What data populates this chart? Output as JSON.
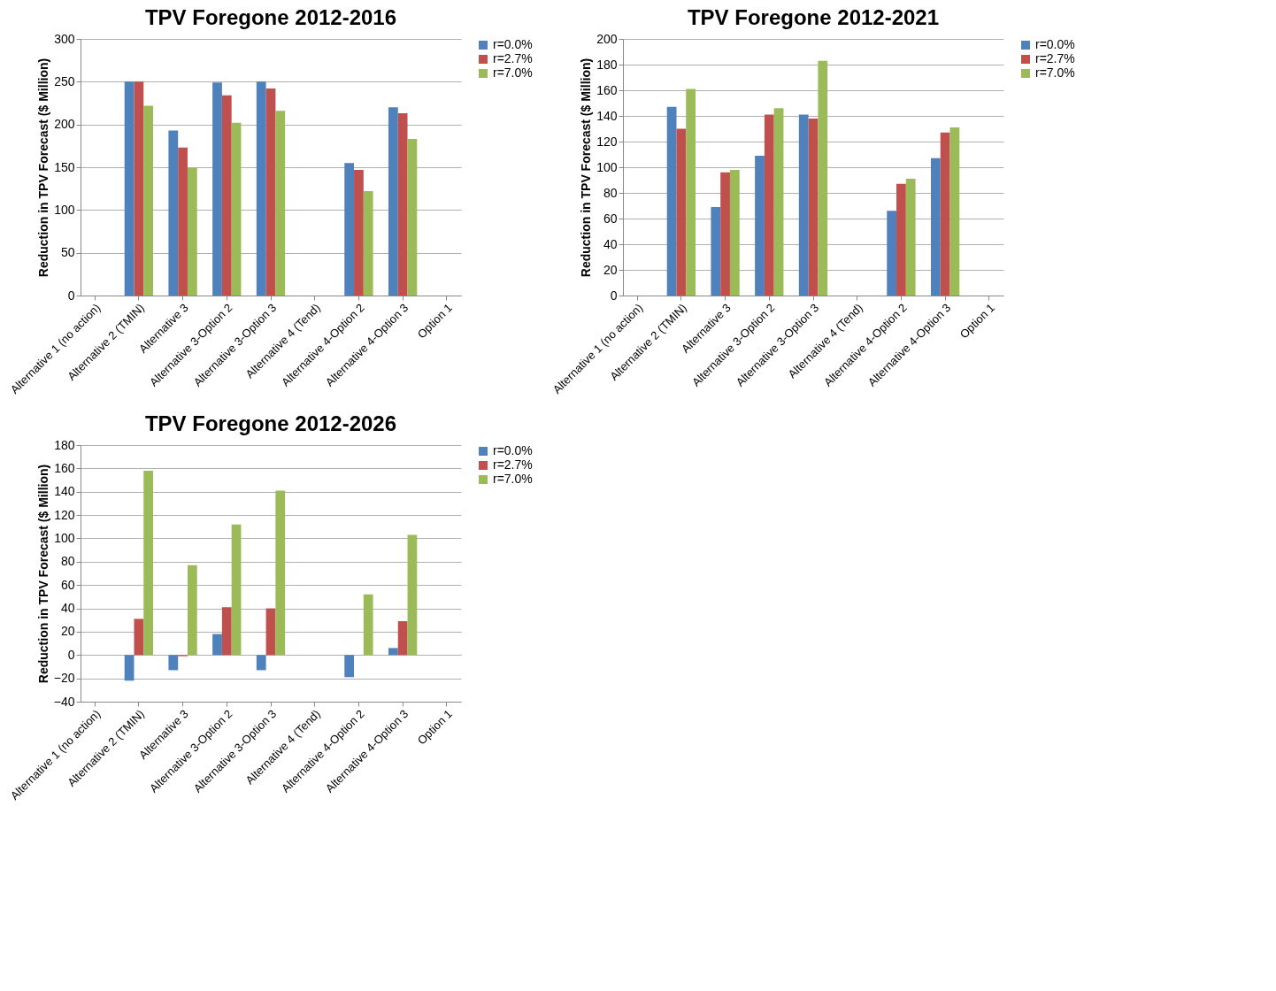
{
  "chart_data": [
    {
      "type": "bar",
      "title": "TPV Foregone 2012-2016",
      "ylabel": "Reduction in TPV Forecast ($ Million)",
      "categories": [
        "Alternative 1 (no action)",
        "Alternative 2 (TMIN)",
        "Alternative 3",
        "Alternative 3-Option 2",
        "Alternative 3-Option 3",
        "Alternative 4 (Tend)",
        "Alternative 4-Option 2",
        "Alternative 4-Option 3",
        "Option 1"
      ],
      "ylim": [
        0,
        300
      ],
      "yticks": [
        0,
        50,
        100,
        150,
        200,
        250,
        300
      ],
      "grid": "y",
      "legend": "right",
      "series": [
        {
          "name": "r=0.0%",
          "color": "#4f81bd",
          "values": [
            null,
            250,
            193,
            249,
            250,
            null,
            155,
            220,
            null
          ]
        },
        {
          "name": "r=2.7%",
          "color": "#c0504d",
          "values": [
            null,
            250,
            173,
            234,
            242,
            null,
            147,
            213,
            null
          ]
        },
        {
          "name": "r=7.0%",
          "color": "#9bbb59",
          "values": [
            null,
            222,
            149,
            202,
            216,
            null,
            122,
            183,
            null
          ]
        }
      ]
    },
    {
      "type": "bar",
      "title": "TPV Foregone 2012-2021",
      "ylabel": "Reduction in TPV Forecast ($ Million)",
      "categories": [
        "Alternative 1 (no action)",
        "Alternative 2 (TMIN)",
        "Alternative 3",
        "Alternative 3-Option 2",
        "Alternative 3-Option 3",
        "Alternative 4 (Tend)",
        "Alternative 4-Option 2",
        "Alternative 4-Option 3",
        "Option 1"
      ],
      "ylim": [
        0,
        200
      ],
      "yticks": [
        0,
        20,
        40,
        60,
        80,
        100,
        120,
        140,
        160,
        180,
        200
      ],
      "grid": "y",
      "legend": "right",
      "series": [
        {
          "name": "r=0.0%",
          "color": "#4f81bd",
          "values": [
            null,
            147,
            69,
            109,
            141,
            null,
            66,
            107,
            null
          ]
        },
        {
          "name": "r=2.7%",
          "color": "#c0504d",
          "values": [
            null,
            130,
            96,
            141,
            138,
            null,
            87,
            127,
            null
          ]
        },
        {
          "name": "r=7.0%",
          "color": "#9bbb59",
          "values": [
            null,
            161,
            98,
            146,
            183,
            null,
            91,
            131,
            null
          ]
        }
      ]
    },
    {
      "type": "bar",
      "title": "TPV Foregone 2012-2026",
      "ylabel": "Reduction in TPV Forecast ($ Million)",
      "categories": [
        "Alternative 1 (no action)",
        "Alternative 2 (TMIN)",
        "Alternative 3",
        "Alternative 3-Option 2",
        "Alternative 3-Option 3",
        "Alternative 4 (Tend)",
        "Alternative 4-Option 2",
        "Alternative 4-Option 3",
        "Option 1"
      ],
      "ylim": [
        -40,
        180
      ],
      "yticks": [
        -40,
        -20,
        0,
        20,
        40,
        60,
        80,
        100,
        120,
        140,
        160,
        180
      ],
      "grid": "y",
      "legend": "right",
      "series": [
        {
          "name": "r=0.0%",
          "color": "#4f81bd",
          "values": [
            null,
            -22,
            -13,
            18,
            -13,
            null,
            -19,
            6,
            null
          ]
        },
        {
          "name": "r=2.7%",
          "color": "#c0504d",
          "values": [
            null,
            31,
            -1,
            41,
            40,
            null,
            null,
            29,
            null
          ]
        },
        {
          "name": "r=7.0%",
          "color": "#9bbb59",
          "values": [
            null,
            158,
            77,
            112,
            141,
            null,
            52,
            103,
            null
          ]
        }
      ]
    }
  ]
}
